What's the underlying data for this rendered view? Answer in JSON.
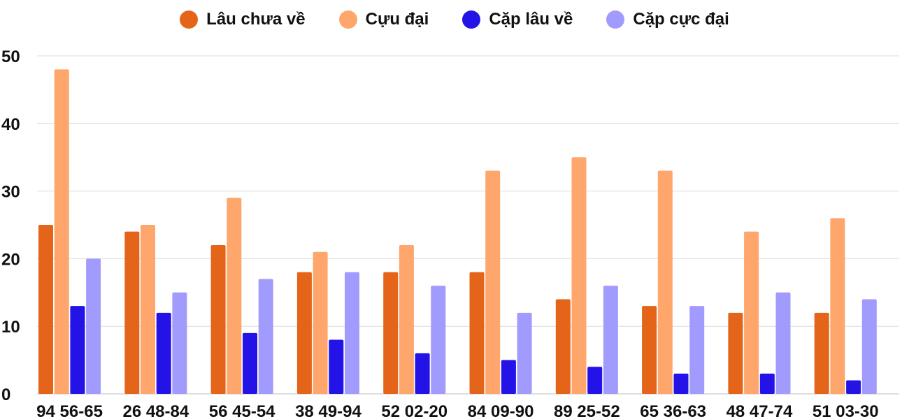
{
  "chart_data": {
    "type": "bar",
    "categories": [
      "94 56-65",
      "26 48-84",
      "56 45-54",
      "38 49-94",
      "52 02-20",
      "84 09-90",
      "89 25-52",
      "65 36-63",
      "48 47-74",
      "51 03-30"
    ],
    "series": [
      {
        "name": "Lâu chưa về",
        "color": "#e4651a",
        "values": [
          25,
          24,
          22,
          18,
          18,
          18,
          14,
          13,
          12,
          12
        ]
      },
      {
        "name": "Cựu đại",
        "color": "#fea66b",
        "values": [
          48,
          25,
          29,
          21,
          22,
          33,
          35,
          33,
          24,
          26
        ]
      },
      {
        "name": "Cặp lâu về",
        "color": "#2313e7",
        "values": [
          13,
          12,
          9,
          8,
          6,
          5,
          4,
          3,
          3,
          2
        ]
      },
      {
        "name": "Cặp cực đại",
        "color": "#a29bfe",
        "values": [
          20,
          15,
          17,
          18,
          16,
          12,
          16,
          13,
          15,
          14
        ]
      }
    ],
    "ylim": [
      0,
      50
    ],
    "yticks": [
      "0",
      "10",
      "20",
      "30",
      "40",
      "50"
    ],
    "grid": true,
    "legend_position": "top-center"
  }
}
